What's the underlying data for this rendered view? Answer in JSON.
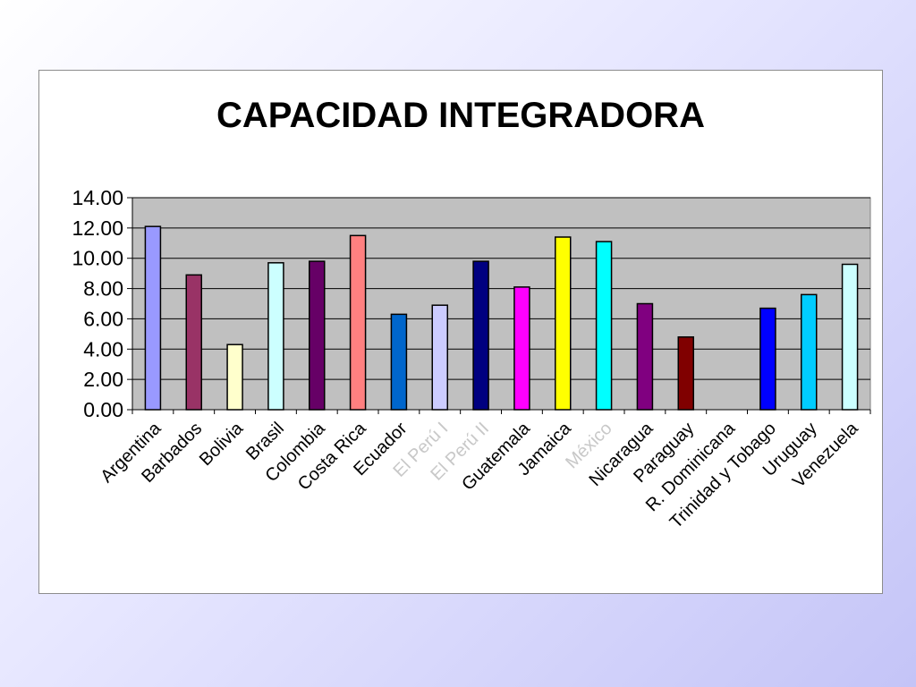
{
  "chart_data": {
    "type": "bar",
    "title": "CAPACIDAD INTEGRADORA",
    "categories": [
      "Argentina",
      "Barbados",
      "Bolivia",
      "Brasil",
      "Colombia",
      "Costa Rica",
      "Ecuador",
      "El Perú I",
      "El Perú II",
      "Guatemala",
      "Jamaica",
      "México",
      "Nicaragua",
      "Paraguay",
      "R. Dominicana",
      "Trinidad y Tobago",
      "Uruguay",
      "Venezuela"
    ],
    "values": [
      12.1,
      8.9,
      4.3,
      9.7,
      9.8,
      11.5,
      6.3,
      6.9,
      9.8,
      8.1,
      11.4,
      11.1,
      7.0,
      4.8,
      0,
      6.7,
      7.6,
      9.6
    ],
    "bar_colors": [
      "#9999ff",
      "#993366",
      "#ffffcc",
      "#ccffff",
      "#660066",
      "#ff8080",
      "#0066cc",
      "#ccccff",
      "#000080",
      "#ff00ff",
      "#ffff00",
      "#00ffff",
      "#800080",
      "#800000",
      "#008080",
      "#0000ff",
      "#00ccff",
      "#ccffff"
    ],
    "faded_categories": [
      "El Perú I",
      "El Perú II",
      "México"
    ],
    "ylim": [
      0,
      14
    ],
    "yticks": [
      "0.00",
      "2.00",
      "4.00",
      "6.00",
      "8.00",
      "10.00",
      "12.00",
      "14.00"
    ],
    "plot_background": "#c0c0c0",
    "grid": true,
    "legend": "none",
    "xlabel": "",
    "ylabel": ""
  }
}
